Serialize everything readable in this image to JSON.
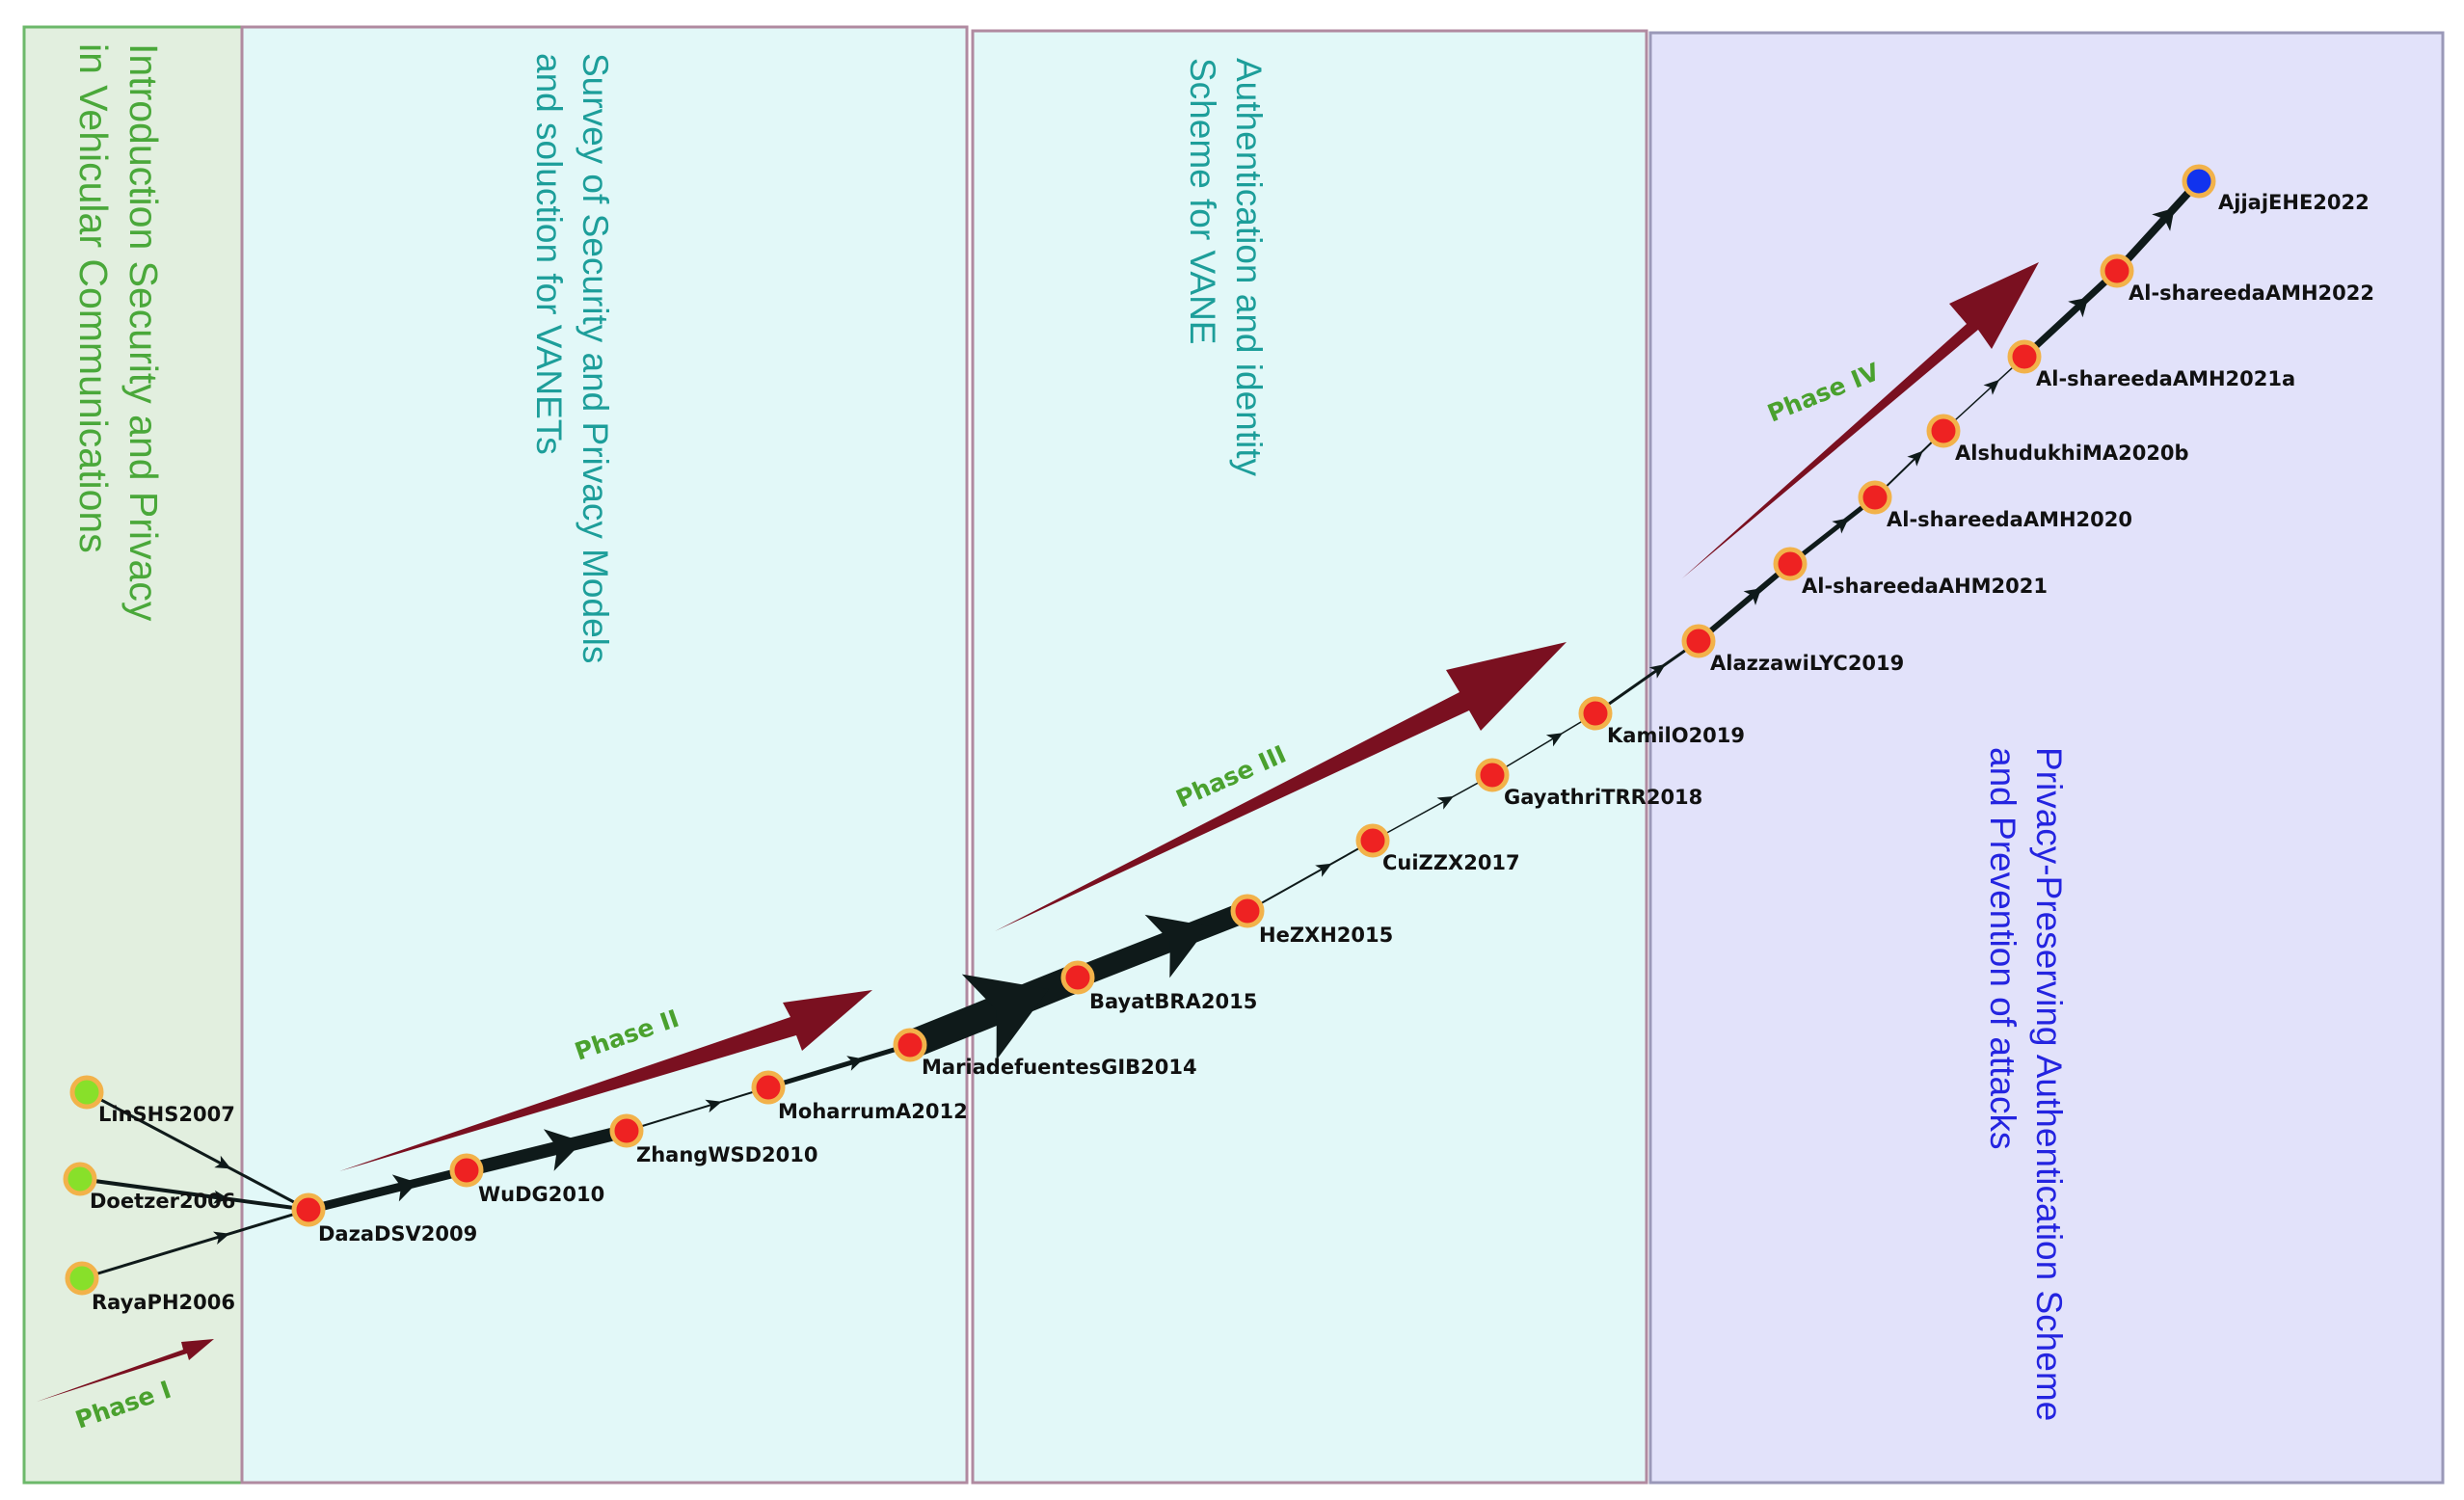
{
  "colors": {
    "node_fill": "#ee2222",
    "node_ring": "#f2b24a",
    "start_node_fill": "#88e02a",
    "end_node_fill": "#1133ee",
    "edge": "#0f1a1a",
    "phase_arrow": "#7a1020",
    "phase_text": "#4aa12e"
  },
  "regions": [
    {
      "id": "intro",
      "title_lines": [
        "Introduction Security and Privacy",
        "in Vehicular Communications"
      ],
      "fill": "#e2efdf",
      "border": "#6cb86a",
      "text_color": "#4aa83a"
    },
    {
      "id": "survey",
      "title_lines": [
        "Survey of Security and Privacy Models",
        "and soluction for VANETs"
      ],
      "fill": "#e2f8f8",
      "border": "#b08aa0",
      "text_color": "#1d9e9a"
    },
    {
      "id": "auth",
      "title_lines": [
        "Authentication and identity",
        "Scheme for VANE"
      ],
      "fill": "#e2f8f8",
      "border": "#b08aa0",
      "text_color": "#1d9e9a"
    },
    {
      "id": "privacy",
      "title_lines": [
        "Privacy-Preserving Authentication Scheme",
        "and Prevention of attacks"
      ],
      "fill": "#e2e2fa",
      "border": "#9a98b8",
      "text_color": "#2424e0"
    }
  ],
  "phases": [
    {
      "id": "phase1",
      "label": "Phase  I"
    },
    {
      "id": "phase2",
      "label": "Phase  II"
    },
    {
      "id": "phase3",
      "label": "Phase  III"
    },
    {
      "id": "phase4",
      "label": "Phase  IV"
    }
  ],
  "nodes": [
    {
      "id": "n01",
      "label": "LinSHS2007",
      "kind": "start"
    },
    {
      "id": "n02",
      "label": "Doetzer2006",
      "kind": "start"
    },
    {
      "id": "n03",
      "label": "RayaPH2006",
      "kind": "start"
    },
    {
      "id": "n04",
      "label": "DazaDSV2009",
      "kind": "mid"
    },
    {
      "id": "n05",
      "label": "WuDG2010",
      "kind": "mid"
    },
    {
      "id": "n06",
      "label": "ZhangWSD2010",
      "kind": "mid"
    },
    {
      "id": "n07",
      "label": "MoharrumA2012",
      "kind": "mid"
    },
    {
      "id": "n08",
      "label": "MariadefuentesGIB2014",
      "kind": "mid"
    },
    {
      "id": "n09",
      "label": "BayatBRA2015",
      "kind": "mid"
    },
    {
      "id": "n10",
      "label": "HeZXH2015",
      "kind": "mid"
    },
    {
      "id": "n11",
      "label": "CuiZZX2017",
      "kind": "mid"
    },
    {
      "id": "n12",
      "label": "GayathriTRR2018",
      "kind": "mid"
    },
    {
      "id": "n13",
      "label": "KamilO2019",
      "kind": "mid"
    },
    {
      "id": "n14",
      "label": "AlazzawiLYC2019",
      "kind": "mid"
    },
    {
      "id": "n15",
      "label": "Al-shareedaAHM2021",
      "kind": "mid"
    },
    {
      "id": "n16",
      "label": "Al-shareedaAMH2020",
      "kind": "mid"
    },
    {
      "id": "n17",
      "label": "AlshudukhiMA2020b",
      "kind": "mid"
    },
    {
      "id": "n18",
      "label": "Al-shareedaAMH2021a",
      "kind": "mid"
    },
    {
      "id": "n19",
      "label": "Al-shareedaAMH2022",
      "kind": "mid"
    },
    {
      "id": "n20",
      "label": "AjjajEHE2022",
      "kind": "end"
    }
  ],
  "edges": [
    {
      "from": "n01",
      "to": "n04",
      "weight": 3
    },
    {
      "from": "n02",
      "to": "n04",
      "weight": 4
    },
    {
      "from": "n03",
      "to": "n04",
      "weight": 3
    },
    {
      "from": "n04",
      "to": "n05",
      "weight": 9
    },
    {
      "from": "n05",
      "to": "n06",
      "weight": 14
    },
    {
      "from": "n06",
      "to": "n07",
      "weight": 2
    },
    {
      "from": "n07",
      "to": "n08",
      "weight": 5
    },
    {
      "from": "n08",
      "to": "n09",
      "weight": 30
    },
    {
      "from": "n09",
      "to": "n10",
      "weight": 22
    },
    {
      "from": "n10",
      "to": "n11",
      "weight": 2
    },
    {
      "from": "n11",
      "to": "n12",
      "weight": 1.5
    },
    {
      "from": "n12",
      "to": "n13",
      "weight": 1.5
    },
    {
      "from": "n13",
      "to": "n14",
      "weight": 3
    },
    {
      "from": "n14",
      "to": "n15",
      "weight": 6
    },
    {
      "from": "n15",
      "to": "n16",
      "weight": 5
    },
    {
      "from": "n16",
      "to": "n17",
      "weight": 2
    },
    {
      "from": "n17",
      "to": "n18",
      "weight": 1.5
    },
    {
      "from": "n18",
      "to": "n19",
      "weight": 7
    },
    {
      "from": "n19",
      "to": "n20",
      "weight": 8
    }
  ]
}
